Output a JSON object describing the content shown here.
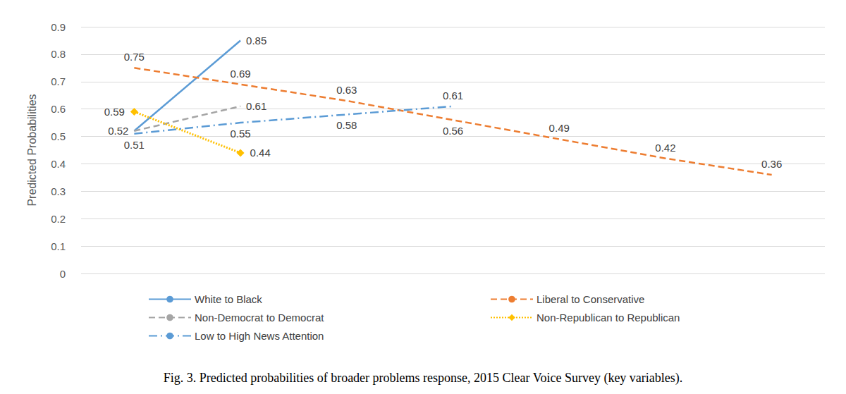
{
  "chart_data": {
    "type": "line",
    "title": "Fig. 3. Predicted probabilities of broader problems response, 2015 Clear Voice Survey (key variables).",
    "y_label": "Predicted Probabilities",
    "categories": [
      null,
      null,
      null,
      null,
      null,
      null,
      null
    ],
    "ylim": [
      0,
      0.9
    ],
    "yticks": [
      0,
      0.1,
      0.2,
      0.3,
      0.4,
      0.5,
      0.6,
      0.7,
      0.8,
      0.9
    ],
    "grid": true,
    "legend": "bottom",
    "tick_labels": "y",
    "data_labels": true,
    "series": [
      {
        "name": "White to Black",
        "color": "#5b9bd5",
        "line_style": "solid",
        "marker": "none",
        "values": [
          0.52,
          0.85,
          null,
          null,
          null,
          null,
          null
        ]
      },
      {
        "name": "Liberal to Conservative",
        "color": "#ed7d31",
        "line_style": "dashed",
        "marker": "none",
        "values": [
          0.75,
          0.69,
          0.63,
          0.56,
          0.49,
          0.42,
          0.36
        ]
      },
      {
        "name": "Non-Democrat to Democrat",
        "color": "#a5a5a5",
        "line_style": "dashed",
        "marker": "none",
        "values": [
          0.52,
          0.61,
          null,
          null,
          null,
          null,
          null
        ],
        "value_labels": [
          null,
          "0.61",
          null,
          null,
          null,
          null,
          null
        ]
      },
      {
        "name": "Non-Republican to Republican",
        "color": "#ffc000",
        "line_style": "dotted",
        "marker": "diamond",
        "values": [
          0.59,
          0.44,
          null,
          null,
          null,
          null,
          null
        ]
      },
      {
        "name": "Low to High News Attention",
        "color": "#5b9bd5",
        "line_style": "dashdot",
        "marker": "none",
        "values": [
          0.51,
          0.55,
          0.58,
          0.61,
          null,
          null,
          null
        ]
      }
    ]
  }
}
